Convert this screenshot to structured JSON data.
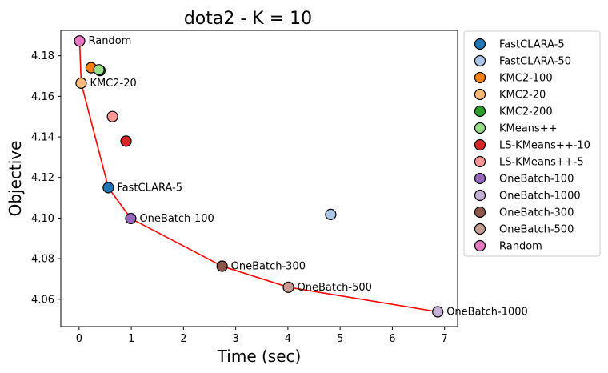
{
  "chart_data": {
    "type": "scatter",
    "title": "dota2 - K = 10",
    "xlabel": "Time (sec)",
    "ylabel": "Objective",
    "xlim": [
      -0.35,
      7.25
    ],
    "ylim": [
      4.0465,
      4.1925
    ],
    "xticks": [
      0,
      1,
      2,
      3,
      4,
      5,
      6,
      7
    ],
    "yticks": [
      4.06,
      4.08,
      4.1,
      4.12,
      4.14,
      4.16,
      4.18
    ],
    "grid": false,
    "legend_position": "outside-right",
    "series": [
      {
        "name": "FastCLARA-5",
        "color": "#1f77b4",
        "x": 0.56,
        "y": 4.115
      },
      {
        "name": "FastCLARA-50",
        "color": "#aec7e8",
        "x": 4.82,
        "y": 4.1018
      },
      {
        "name": "KMC2-100",
        "color": "#ff7f0e",
        "x": 0.23,
        "y": 4.1741
      },
      {
        "name": "KMC2-20",
        "color": "#ffbb78",
        "x": 0.04,
        "y": 4.1665
      },
      {
        "name": "KMC2-200",
        "color": "#2ca02c",
        "x": 0.4,
        "y": 4.1727
      },
      {
        "name": "KMeans++",
        "color": "#98df8a",
        "x": 0.38,
        "y": 4.1731
      },
      {
        "name": "LS-KMeans++-10",
        "color": "#d62728",
        "x": 0.9,
        "y": 4.1379
      },
      {
        "name": "LS-KMeans++-5",
        "color": "#ff9896",
        "x": 0.64,
        "y": 4.15
      },
      {
        "name": "OneBatch-100",
        "color": "#9467bd",
        "x": 0.99,
        "y": 4.0998
      },
      {
        "name": "OneBatch-1000",
        "color": "#c5b0d5",
        "x": 6.87,
        "y": 4.0538
      },
      {
        "name": "OneBatch-300",
        "color": "#8c564b",
        "x": 2.74,
        "y": 4.0763
      },
      {
        "name": "OneBatch-500",
        "color": "#c49c94",
        "x": 4.01,
        "y": 4.0659
      },
      {
        "name": "Random",
        "color": "#e377c2",
        "x": 0.01,
        "y": 4.1873
      }
    ],
    "pareto_front": {
      "color": "#ff0000",
      "x": [
        0.01,
        0.04,
        0.56,
        0.99,
        2.74,
        4.01,
        6.87
      ],
      "y": [
        4.1873,
        4.1665,
        4.115,
        4.0998,
        4.0763,
        4.0659,
        4.0538
      ]
    },
    "annotations": [
      {
        "text": "Random",
        "x": 0.01,
        "y": 4.1873
      },
      {
        "text": "KMC2-20",
        "x": 0.04,
        "y": 4.1665
      },
      {
        "text": "FastCLARA-5",
        "x": 0.56,
        "y": 4.115
      },
      {
        "text": "OneBatch-100",
        "x": 0.99,
        "y": 4.0998
      },
      {
        "text": "OneBatch-300",
        "x": 2.74,
        "y": 4.0763
      },
      {
        "text": "OneBatch-500",
        "x": 4.01,
        "y": 4.0659
      },
      {
        "text": "OneBatch-1000",
        "x": 6.87,
        "y": 4.0538
      }
    ]
  }
}
